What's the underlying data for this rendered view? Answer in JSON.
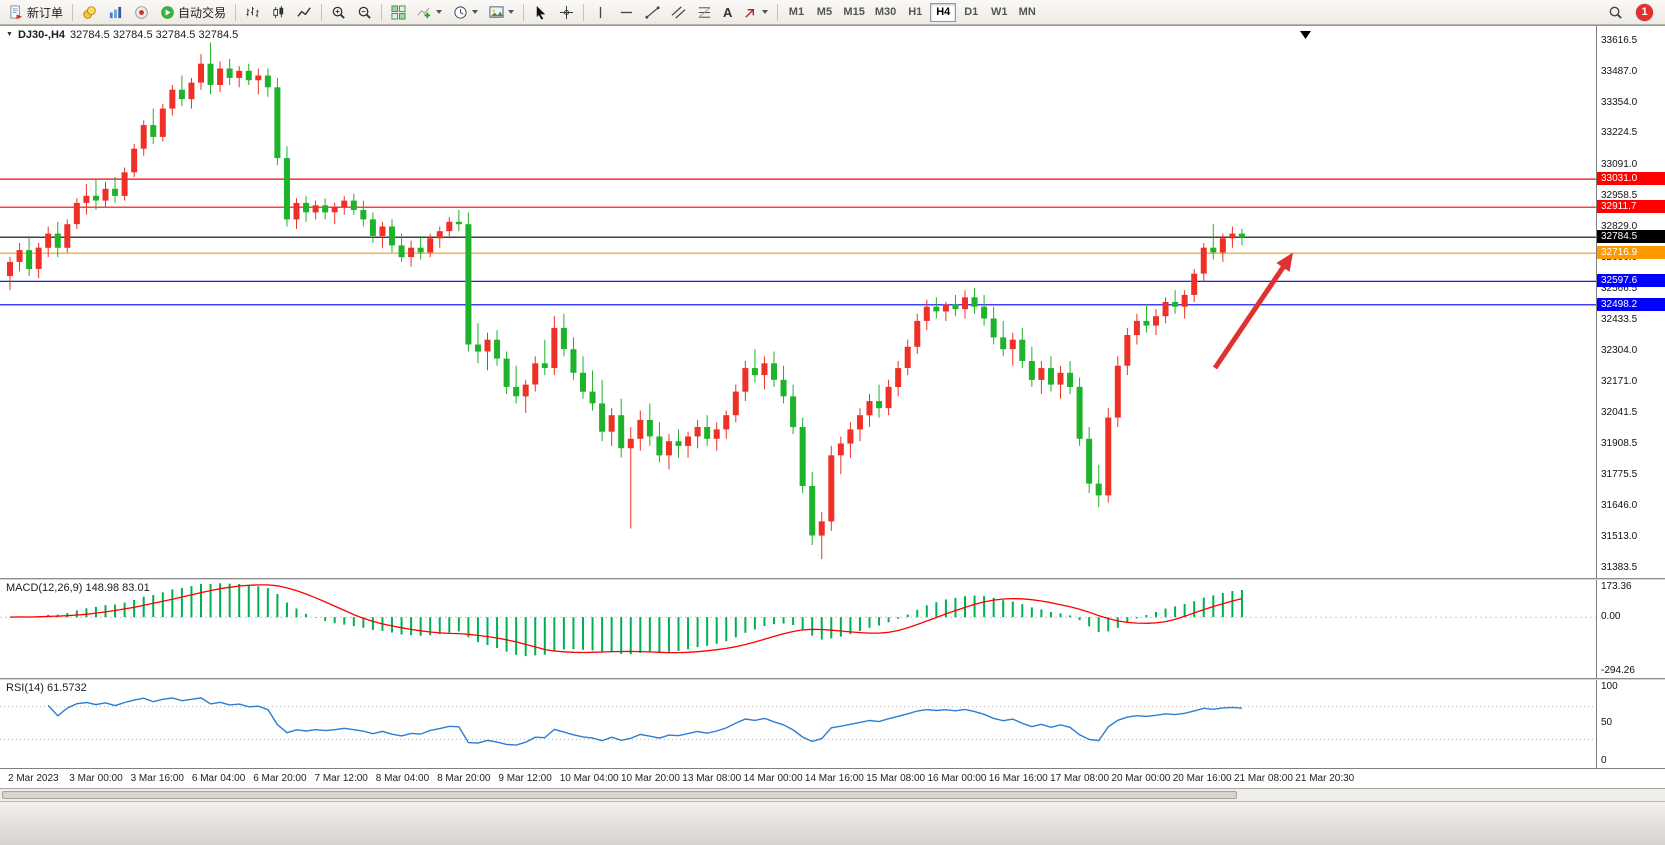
{
  "window": {
    "toolbar": {
      "new_order_label": "新订单",
      "autotrading_label": "自动交易",
      "text_tool_glyph": "A",
      "timeframes": [
        "M1",
        "M5",
        "M15",
        "M30",
        "H1",
        "H4",
        "D1",
        "W1",
        "MN"
      ],
      "active_timeframe": "H4",
      "notification_count": "1",
      "icons": [
        "new-order",
        "market-watch",
        "charts",
        "community",
        "auto-trading",
        "bar-chart",
        "candlestick-chart",
        "line-chart",
        "zoom-in",
        "zoom-out",
        "tile-windows",
        "indicators",
        "periods-clock",
        "templates",
        "cursor",
        "crosshair",
        "vertical-line",
        "horizontal-line",
        "trendline",
        "equidistant-channel",
        "fibonacci",
        "text",
        "arrows",
        "search",
        "notification"
      ]
    }
  },
  "chart": {
    "title": "DJ30-,H4",
    "ohlc": "32784.5 32784.5 32784.5 32784.5",
    "arrow_color": "#e03131",
    "price_axis": [
      "33616.5",
      "33487.0",
      "33354.0",
      "33224.5",
      "33091.0",
      "32958.5",
      "32829.0",
      "32696.0",
      "32566.5",
      "32433.5",
      "32304.0",
      "32171.0",
      "32041.5",
      "31908.5",
      "31775.5",
      "31646.0",
      "31513.0",
      "31383.5"
    ],
    "hlines": [
      {
        "price": 33031.0,
        "label": "33031.0",
        "color": "#ff0000",
        "current": false
      },
      {
        "price": 32911.7,
        "label": "32911.7",
        "color": "#ff0000",
        "current": false
      },
      {
        "price": 32784.5,
        "label": "32784.5",
        "color": "#000000",
        "current": true
      },
      {
        "price": 32716.9,
        "label": "32716.9",
        "color": "#ff9900",
        "current": false
      },
      {
        "price": 32597.6,
        "label": "32597.6",
        "color": "#0000ff",
        "current": false
      },
      {
        "price": 32498.2,
        "label": "32498.2",
        "color": "#0000ff",
        "current": false
      }
    ],
    "time_axis": [
      "2 Mar 2023",
      "3 Mar 00:00",
      "3 Mar 16:00",
      "6 Mar 04:00",
      "6 Mar 20:00",
      "7 Mar 12:00",
      "8 Mar 04:00",
      "8 Mar 20:00",
      "9 Mar 12:00",
      "10 Mar 04:00",
      "10 Mar 20:00",
      "13 Mar 08:00",
      "14 Mar 00:00",
      "14 Mar 16:00",
      "15 Mar 08:00",
      "16 Mar 00:00",
      "16 Mar 16:00",
      "17 Mar 08:00",
      "20 Mar 00:00",
      "20 Mar 16:00",
      "21 Mar 08:00",
      "21 Mar 20:30"
    ]
  },
  "indicators": {
    "macd": {
      "label": "MACD(12,26,9) 148.98 83.01",
      "axis": [
        "173.36",
        "0.00",
        "-294.26"
      ],
      "histogram_color": "#00B050",
      "signal_color": "#ff0000"
    },
    "rsi": {
      "label": "RSI(14) 61.5732",
      "axis": [
        "100",
        "50",
        "0"
      ],
      "line_color": "#2a7fd4",
      "levels": [
        70,
        30
      ]
    }
  },
  "chart_data": {
    "type": "candlestick",
    "symbol": "DJ30-",
    "timeframe": "H4",
    "up_color": "#ee3026",
    "down_color": "#1db32a",
    "price_range": [
      31340,
      33680
    ],
    "last_price": 32784.5,
    "candles": [
      [
        32620,
        32700,
        32560,
        32680
      ],
      [
        32680,
        32760,
        32640,
        32730
      ],
      [
        32730,
        32790,
        32620,
        32650
      ],
      [
        32650,
        32760,
        32610,
        32740
      ],
      [
        32740,
        32830,
        32700,
        32800
      ],
      [
        32800,
        32850,
        32700,
        32740
      ],
      [
        32740,
        32860,
        32720,
        32840
      ],
      [
        32840,
        32950,
        32820,
        32930
      ],
      [
        32930,
        33010,
        32880,
        32960
      ],
      [
        32960,
        33030,
        32900,
        32940
      ],
      [
        32940,
        33020,
        32910,
        32990
      ],
      [
        32990,
        33040,
        32930,
        32960
      ],
      [
        32960,
        33080,
        32940,
        33060
      ],
      [
        33060,
        33180,
        33040,
        33160
      ],
      [
        33160,
        33280,
        33130,
        33260
      ],
      [
        33260,
        33330,
        33180,
        33210
      ],
      [
        33210,
        33350,
        33190,
        33330
      ],
      [
        33330,
        33430,
        33300,
        33410
      ],
      [
        33410,
        33470,
        33340,
        33370
      ],
      [
        33370,
        33460,
        33330,
        33440
      ],
      [
        33440,
        33560,
        33410,
        33520
      ],
      [
        33520,
        33610,
        33390,
        33430
      ],
      [
        33430,
        33530,
        33400,
        33500
      ],
      [
        33500,
        33540,
        33430,
        33460
      ],
      [
        33460,
        33510,
        33420,
        33490
      ],
      [
        33490,
        33520,
        33430,
        33450
      ],
      [
        33450,
        33500,
        33390,
        33470
      ],
      [
        33470,
        33500,
        33380,
        33420
      ],
      [
        33420,
        33460,
        33090,
        33120
      ],
      [
        33120,
        33170,
        32830,
        32860
      ],
      [
        32860,
        32950,
        32820,
        32930
      ],
      [
        32930,
        32960,
        32850,
        32890
      ],
      [
        32890,
        32940,
        32860,
        32920
      ],
      [
        32920,
        32950,
        32860,
        32890
      ],
      [
        32890,
        32930,
        32840,
        32910
      ],
      [
        32910,
        32960,
        32880,
        32940
      ],
      [
        32940,
        32970,
        32880,
        32900
      ],
      [
        32900,
        32940,
        32830,
        32860
      ],
      [
        32860,
        32890,
        32760,
        32790
      ],
      [
        32790,
        32850,
        32740,
        32830
      ],
      [
        32830,
        32860,
        32720,
        32750
      ],
      [
        32750,
        32800,
        32680,
        32700
      ],
      [
        32700,
        32770,
        32660,
        32740
      ],
      [
        32740,
        32790,
        32690,
        32720
      ],
      [
        32720,
        32800,
        32700,
        32780
      ],
      [
        32780,
        32830,
        32740,
        32810
      ],
      [
        32810,
        32870,
        32780,
        32850
      ],
      [
        32850,
        32900,
        32810,
        32840
      ],
      [
        32840,
        32890,
        32300,
        32330
      ],
      [
        32330,
        32420,
        32250,
        32300
      ],
      [
        32300,
        32380,
        32220,
        32350
      ],
      [
        32350,
        32390,
        32240,
        32270
      ],
      [
        32270,
        32300,
        32120,
        32150
      ],
      [
        32150,
        32240,
        32080,
        32110
      ],
      [
        32110,
        32180,
        32040,
        32160
      ],
      [
        32160,
        32280,
        32130,
        32250
      ],
      [
        32250,
        32350,
        32200,
        32230
      ],
      [
        32230,
        32450,
        32200,
        32400
      ],
      [
        32400,
        32460,
        32280,
        32310
      ],
      [
        32310,
        32360,
        32180,
        32210
      ],
      [
        32210,
        32280,
        32100,
        32130
      ],
      [
        32130,
        32220,
        32050,
        32080
      ],
      [
        32080,
        32180,
        31920,
        31960
      ],
      [
        31960,
        32060,
        31900,
        32030
      ],
      [
        32030,
        32100,
        31850,
        31890
      ],
      [
        31890,
        31980,
        31550,
        31930
      ],
      [
        31930,
        32050,
        31880,
        32010
      ],
      [
        32010,
        32080,
        31900,
        31940
      ],
      [
        31940,
        32000,
        31830,
        31860
      ],
      [
        31860,
        31950,
        31800,
        31920
      ],
      [
        31920,
        31970,
        31850,
        31900
      ],
      [
        31900,
        31960,
        31850,
        31940
      ],
      [
        31940,
        32010,
        31890,
        31980
      ],
      [
        31980,
        32030,
        31900,
        31930
      ],
      [
        31930,
        32000,
        31880,
        31970
      ],
      [
        31970,
        32050,
        31930,
        32030
      ],
      [
        32030,
        32160,
        32000,
        32130
      ],
      [
        32130,
        32260,
        32090,
        32230
      ],
      [
        32230,
        32310,
        32170,
        32200
      ],
      [
        32200,
        32280,
        32140,
        32250
      ],
      [
        32250,
        32300,
        32150,
        32180
      ],
      [
        32180,
        32240,
        32080,
        32110
      ],
      [
        32110,
        32160,
        31950,
        31980
      ],
      [
        31980,
        32020,
        31700,
        31730
      ],
      [
        31730,
        31790,
        31480,
        31520
      ],
      [
        31520,
        31620,
        31420,
        31580
      ],
      [
        31580,
        31900,
        31540,
        31860
      ],
      [
        31860,
        31940,
        31780,
        31910
      ],
      [
        31910,
        32000,
        31850,
        31970
      ],
      [
        31970,
        32060,
        31920,
        32030
      ],
      [
        32030,
        32120,
        31980,
        32090
      ],
      [
        32090,
        32160,
        32020,
        32060
      ],
      [
        32060,
        32180,
        32030,
        32150
      ],
      [
        32150,
        32260,
        32110,
        32230
      ],
      [
        32230,
        32350,
        32200,
        32320
      ],
      [
        32320,
        32460,
        32290,
        32430
      ],
      [
        32430,
        32520,
        32390,
        32490
      ],
      [
        32490,
        32530,
        32440,
        32470
      ],
      [
        32470,
        32510,
        32430,
        32500
      ],
      [
        32500,
        32540,
        32450,
        32480
      ],
      [
        32480,
        32560,
        32440,
        32530
      ],
      [
        32530,
        32570,
        32460,
        32490
      ],
      [
        32490,
        32540,
        32410,
        32440
      ],
      [
        32440,
        32490,
        32330,
        32360
      ],
      [
        32360,
        32430,
        32280,
        32310
      ],
      [
        32310,
        32380,
        32240,
        32350
      ],
      [
        32350,
        32400,
        32230,
        32260
      ],
      [
        32260,
        32320,
        32150,
        32180
      ],
      [
        32180,
        32260,
        32120,
        32230
      ],
      [
        32230,
        32280,
        32130,
        32160
      ],
      [
        32160,
        32240,
        32100,
        32210
      ],
      [
        32210,
        32260,
        32120,
        32150
      ],
      [
        32150,
        32190,
        31900,
        31930
      ],
      [
        31930,
        31980,
        31700,
        31740
      ],
      [
        31740,
        31820,
        31640,
        31690
      ],
      [
        31690,
        32060,
        31660,
        32020
      ],
      [
        32020,
        32280,
        31980,
        32240
      ],
      [
        32240,
        32400,
        32200,
        32370
      ],
      [
        32370,
        32460,
        32330,
        32430
      ],
      [
        32430,
        32500,
        32380,
        32410
      ],
      [
        32410,
        32480,
        32370,
        32450
      ],
      [
        32450,
        32530,
        32420,
        32510
      ],
      [
        32510,
        32560,
        32460,
        32490
      ],
      [
        32490,
        32560,
        32440,
        32540
      ],
      [
        32540,
        32650,
        32510,
        32630
      ],
      [
        32630,
        32760,
        32600,
        32740
      ],
      [
        32740,
        32840,
        32690,
        32720
      ],
      [
        32720,
        32800,
        32680,
        32780
      ],
      [
        32780,
        32830,
        32740,
        32800
      ],
      [
        32800,
        32820,
        32750,
        32784.5
      ]
    ]
  }
}
